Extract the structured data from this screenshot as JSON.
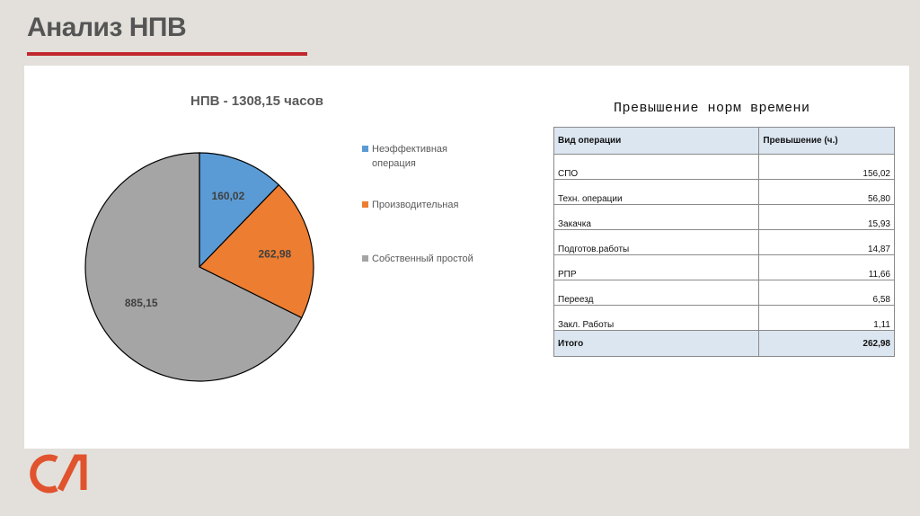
{
  "slide": {
    "title": "Анализ НПВ",
    "accent_color": "#c0282d"
  },
  "chart_data": {
    "type": "pie",
    "title": "НПВ - 1308,15 часов",
    "slices": [
      {
        "name": "Неэффективная операция",
        "value": 160.02,
        "label": "160,02",
        "color": "#5b9bd5"
      },
      {
        "name": "Производительная",
        "value": 262.98,
        "label": "262,98",
        "color": "#ed7d31"
      },
      {
        "name": "Собственный простой",
        "value": 885.15,
        "label": "885,15",
        "color": "#a5a5a5"
      }
    ],
    "legend_position": "right"
  },
  "table": {
    "title": "Превышение норм времени",
    "headers": [
      "Вид операции",
      "Превышение (ч.)"
    ],
    "rows": [
      {
        "op": "СПО",
        "value": "156,02"
      },
      {
        "op": "Техн. операции",
        "value": "56,80"
      },
      {
        "op": "Закачка",
        "value": "15,93"
      },
      {
        "op": "Подготов.работы",
        "value": "14,87"
      },
      {
        "op": "РПР",
        "value": "11,66"
      },
      {
        "op": "Переезд",
        "value": "6,58"
      },
      {
        "op": "Закл. Работы",
        "value": "1,11"
      }
    ],
    "total": {
      "op": "Итого",
      "value": "262,98"
    },
    "header_color": "#dce6f1"
  },
  "logo": {
    "name": "logo-icon",
    "color": "#e0532e"
  }
}
